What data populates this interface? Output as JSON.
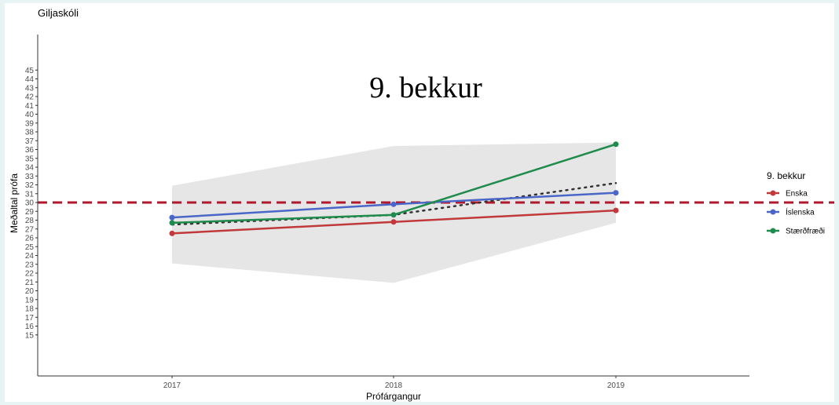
{
  "chart_data": {
    "type": "line",
    "subtitle": "Giljaskóli",
    "title": "9. bekkur",
    "xlabel": "Prófárgangur",
    "ylabel": "Meðaltal prófa",
    "categories": [
      "2017",
      "2018",
      "2019"
    ],
    "ylim": [
      15,
      45
    ],
    "yticks": [
      15,
      16,
      17,
      18,
      19,
      20,
      21,
      22,
      23,
      24,
      25,
      26,
      27,
      28,
      29,
      30,
      31,
      32,
      33,
      34,
      35,
      36,
      37,
      38,
      39,
      40,
      41,
      42,
      43,
      44,
      45
    ],
    "reference_line": {
      "y": 30,
      "color": "#b2182b",
      "style": "dashed"
    },
    "band": {
      "lower": [
        23.1,
        20.9,
        27.7
      ],
      "upper": [
        31.9,
        36.4,
        36.8
      ],
      "color": "#e6e6e6"
    },
    "trend": {
      "values": [
        27.5,
        28.6,
        32.2
      ],
      "style": "dotted",
      "color": "#333333"
    },
    "series": [
      {
        "name": "Enska",
        "values": [
          26.5,
          27.8,
          29.1
        ],
        "color": "#c1393b"
      },
      {
        "name": "Íslenska",
        "values": [
          28.3,
          29.8,
          31.1
        ],
        "color": "#4a67c7"
      },
      {
        "name": "Stærðfræði",
        "values": [
          27.7,
          28.6,
          36.6
        ],
        "color": "#1f8b4c"
      }
    ],
    "legend": {
      "title": "9. bekkur",
      "position": "right"
    },
    "grid": false
  }
}
